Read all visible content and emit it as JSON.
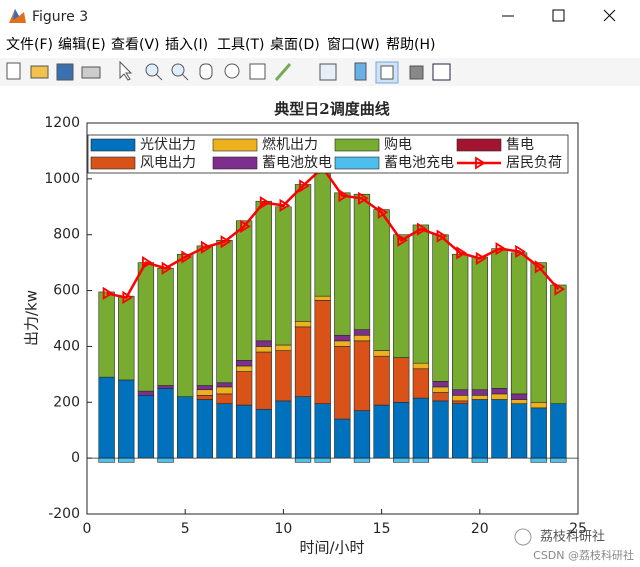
{
  "window": {
    "title": "Figure 3",
    "menu": [
      "文件(F)",
      "编辑(E)",
      "查看(V)",
      "插入(I)",
      "工具(T)",
      "桌面(D)",
      "窗口(W)",
      "帮助(H)"
    ]
  },
  "chart_data": {
    "type": "bar",
    "stacked": true,
    "title": "典型日2调度曲线",
    "x_label": "时间/小时",
    "y_label": "出力/kw",
    "x": [
      1,
      2,
      3,
      4,
      5,
      6,
      7,
      8,
      9,
      10,
      11,
      12,
      13,
      14,
      15,
      16,
      17,
      18,
      19,
      20,
      21,
      22,
      23,
      24
    ],
    "xlim": [
      0,
      25
    ],
    "xticks": [
      0,
      5,
      10,
      15,
      20,
      25
    ],
    "ylim": [
      -200,
      1200
    ],
    "yticks": [
      -200,
      0,
      200,
      400,
      600,
      800,
      1000,
      1200
    ],
    "legend_position": "top",
    "series": [
      {
        "name": "光伏出力",
        "color": "#0072BD",
        "values": [
          290,
          280,
          225,
          250,
          220,
          210,
          195,
          190,
          175,
          205,
          220,
          195,
          140,
          170,
          190,
          200,
          215,
          205,
          195,
          210,
          210,
          195,
          180,
          195
        ]
      },
      {
        "name": "风电出力",
        "color": "#D95319",
        "values": [
          0,
          0,
          0,
          0,
          0,
          15,
          35,
          120,
          205,
          180,
          250,
          370,
          260,
          250,
          175,
          160,
          105,
          30,
          10,
          0,
          0,
          0,
          0,
          0
        ]
      },
      {
        "name": "燃机出力",
        "color": "#EDB120",
        "values": [
          0,
          0,
          0,
          0,
          0,
          20,
          25,
          20,
          20,
          20,
          20,
          15,
          20,
          20,
          20,
          0,
          20,
          20,
          20,
          15,
          20,
          15,
          20,
          0
        ]
      },
      {
        "name": "蓄电池放电",
        "color": "#7E2F8E",
        "values": [
          0,
          0,
          15,
          10,
          0,
          15,
          15,
          20,
          20,
          0,
          0,
          0,
          20,
          20,
          0,
          0,
          0,
          20,
          20,
          20,
          20,
          20,
          0,
          0
        ]
      },
      {
        "name": "购电",
        "color": "#77AC30",
        "values": [
          305,
          300,
          460,
          420,
          510,
          500,
          510,
          500,
          500,
          495,
          490,
          460,
          510,
          485,
          505,
          440,
          495,
          525,
          485,
          475,
          500,
          505,
          500,
          425
        ]
      },
      {
        "name": "蓄电池充电",
        "color": "#4DBEEE",
        "values": [
          -15,
          -15,
          0,
          -15,
          0,
          0,
          0,
          0,
          0,
          0,
          -15,
          -15,
          0,
          -15,
          0,
          -15,
          -15,
          0,
          0,
          -15,
          0,
          0,
          -15,
          -15
        ]
      },
      {
        "name": "售电",
        "color": "#A2142F",
        "values": [
          0,
          0,
          0,
          0,
          0,
          0,
          0,
          0,
          0,
          0,
          0,
          0,
          0,
          0,
          0,
          0,
          0,
          0,
          0,
          0,
          0,
          0,
          0,
          0
        ]
      },
      {
        "name": "居民负荷",
        "color": "#FF0000",
        "type": "line",
        "marker": "triangle-right",
        "values": [
          590,
          575,
          700,
          680,
          720,
          755,
          775,
          830,
          915,
          905,
          975,
          1040,
          940,
          930,
          880,
          780,
          820,
          795,
          735,
          715,
          750,
          740,
          685,
          605
        ]
      }
    ]
  },
  "watermark": {
    "logo_text": "荔枝科研社",
    "footer": "CSDN @荔枝科研社"
  }
}
